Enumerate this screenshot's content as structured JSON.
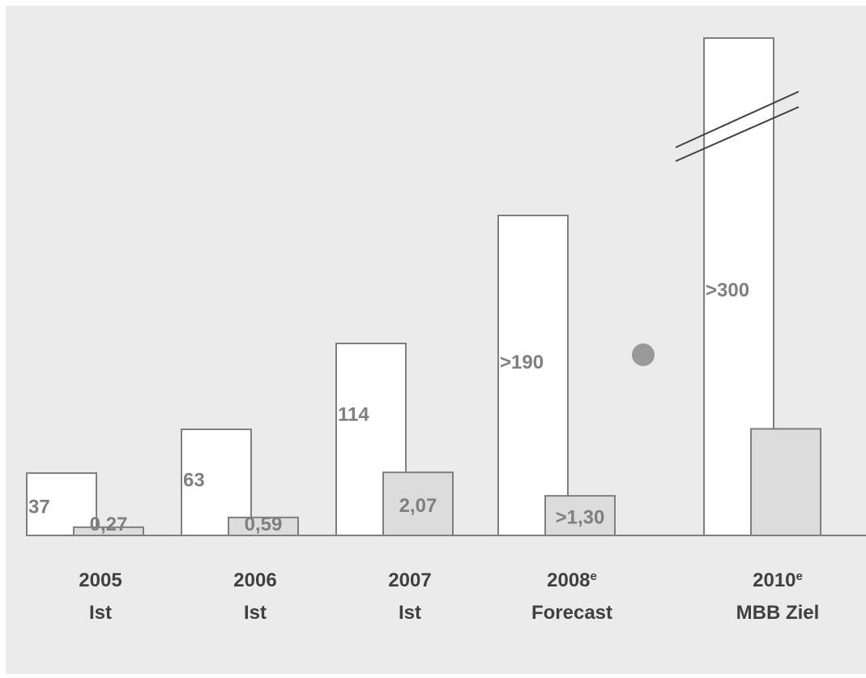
{
  "chart_data": {
    "type": "bar",
    "categories": [
      {
        "year": "2005",
        "sup": "",
        "sub": "Ist"
      },
      {
        "year": "2006",
        "sup": "",
        "sub": "Ist"
      },
      {
        "year": "2007",
        "sup": "",
        "sub": "Ist"
      },
      {
        "year": "2008",
        "sup": "e",
        "sub": "Forecast"
      },
      {
        "year": "2010",
        "sup": "e",
        "sub": "MBB Ziel"
      }
    ],
    "series": [
      {
        "values": [
          37,
          63,
          114,
          190,
          340
        ],
        "labels": [
          "37",
          "63",
          "114",
          ">190",
          ">300"
        ]
      },
      {
        "values": [
          0.27,
          0.59,
          2.07,
          1.3,
          3.5
        ],
        "labels": [
          "0,27",
          "0,59",
          "2,07",
          ">1,30",
          ""
        ]
      }
    ],
    "axis_break": "2010",
    "marker": "grey dot",
    "colors": {
      "background": "#ebebeb",
      "bar1_fill": "#ffffff",
      "bar2_fill": "#dcdcdc",
      "outline": "#7f7f7f",
      "label": "#7f7f7f",
      "category_label": "#404040",
      "dot": "#999999"
    }
  }
}
